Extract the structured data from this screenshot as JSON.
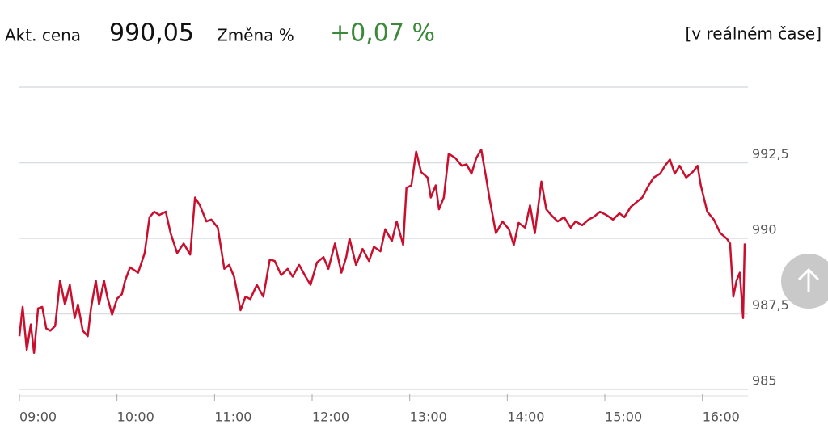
{
  "header": {
    "price_label": "Akt. cena",
    "price": "990,05",
    "change_label": "Změna %",
    "change": "+0,07 %",
    "mode": "[v reálném čase]"
  },
  "chart_data": {
    "type": "line",
    "color": "#c8102e",
    "grid": true,
    "xlim": [
      540,
      988
    ],
    "ylim": [
      985,
      995
    ],
    "xticks": [
      {
        "value": 540,
        "label": "09:00"
      },
      {
        "value": 600,
        "label": "10:00"
      },
      {
        "value": 660,
        "label": "11:00"
      },
      {
        "value": 720,
        "label": "12:00"
      },
      {
        "value": 780,
        "label": "13:00"
      },
      {
        "value": 840,
        "label": "14:00"
      },
      {
        "value": 900,
        "label": "15:00"
      },
      {
        "value": 960,
        "label": "16:00"
      }
    ],
    "yticks": [
      985,
      {
        "value": 987.5,
        "label": "987,5"
      },
      990,
      {
        "value": 992.5,
        "label": "992,5"
      }
    ],
    "x": [
      540,
      542,
      544.5,
      547,
      549,
      551.5,
      554,
      556.5,
      559,
      562,
      565,
      568,
      571,
      574,
      576,
      579,
      582,
      584,
      587,
      589,
      592,
      594,
      597,
      600,
      603,
      605,
      608,
      613,
      617,
      620,
      623,
      626,
      630,
      633,
      637,
      641,
      645,
      648,
      651,
      655,
      658,
      662,
      666,
      669,
      672,
      676,
      679,
      682,
      686,
      690,
      694,
      697,
      701,
      705,
      708,
      712,
      716,
      719,
      723,
      727,
      730,
      734,
      738,
      741,
      743,
      747,
      751,
      755,
      758,
      762,
      765,
      769,
      772,
      776,
      778,
      781,
      784,
      787,
      791,
      793,
      796,
      798,
      801,
      804,
      808,
      812,
      815,
      818,
      821,
      824,
      827,
      829,
      833,
      837,
      841,
      844,
      847,
      851,
      854,
      857,
      861,
      864,
      867,
      871,
      875,
      879,
      882,
      886,
      890,
      893,
      897,
      901,
      905,
      909,
      912,
      916,
      920,
      923,
      927,
      930,
      934,
      937,
      940,
      943,
      946,
      950,
      954,
      957,
      959,
      963,
      967,
      971,
      975,
      977,
      979,
      981,
      983,
      985,
      986
    ],
    "values": [
      986.76,
      987.73,
      986.31,
      987.15,
      986.21,
      987.68,
      987.73,
      987.02,
      986.94,
      987.1,
      988.6,
      987.81,
      988.46,
      987.36,
      987.81,
      986.94,
      986.76,
      987.68,
      988.6,
      987.81,
      988.6,
      988.07,
      987.47,
      988.0,
      988.15,
      988.6,
      989.04,
      988.86,
      989.51,
      990.7,
      990.88,
      990.77,
      990.88,
      990.17,
      989.51,
      989.83,
      989.46,
      991.35,
      991.09,
      990.56,
      990.62,
      990.35,
      988.99,
      989.12,
      988.73,
      987.62,
      988.07,
      987.99,
      988.46,
      988.07,
      989.3,
      989.25,
      988.78,
      988.99,
      988.73,
      989.12,
      988.73,
      988.46,
      989.2,
      989.38,
      988.99,
      989.83,
      988.86,
      989.38,
      989.99,
      989.12,
      989.65,
      989.25,
      989.72,
      989.57,
      990.3,
      989.91,
      990.56,
      989.78,
      991.67,
      991.75,
      992.87,
      992.19,
      992.01,
      991.35,
      991.75,
      990.96,
      991.35,
      992.8,
      992.66,
      992.4,
      992.45,
      992.14,
      992.66,
      992.93,
      992.01,
      991.35,
      990.17,
      990.56,
      990.3,
      989.78,
      990.51,
      990.35,
      991.09,
      990.17,
      991.88,
      990.96,
      990.77,
      990.56,
      990.7,
      990.35,
      990.56,
      990.43,
      990.62,
      990.7,
      990.88,
      990.77,
      990.62,
      990.83,
      990.7,
      991.04,
      991.22,
      991.35,
      991.75,
      992.01,
      992.14,
      992.4,
      992.61,
      992.14,
      992.4,
      992.01,
      992.19,
      992.4,
      991.75,
      990.88,
      990.62,
      990.17,
      989.99,
      989.83,
      988.07,
      988.6,
      988.86,
      987.36,
      989.83
    ]
  }
}
